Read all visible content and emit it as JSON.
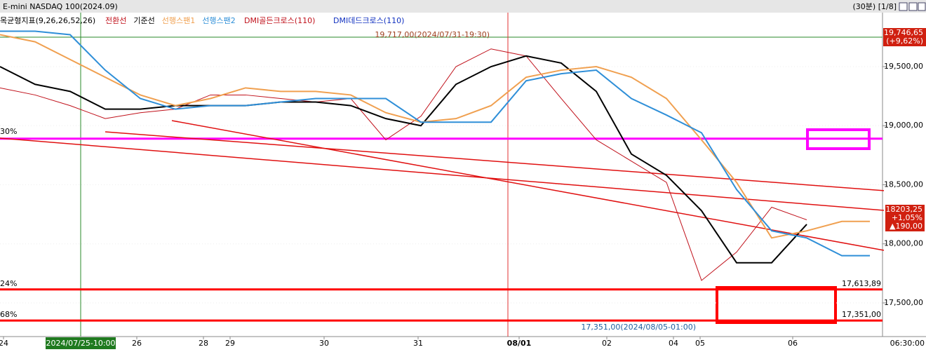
{
  "chart_data": {
    "type": "line",
    "title": "E-mini NASDAQ 100(2024.09)",
    "period": "(30분) [1/8]",
    "indicator": "목균형지표(9,26,26,52,26)",
    "annotations": [
      "DMI골든크로스(110)",
      "DMI데드크로스(110)",
      "19,717,00(2024/07/31-19:30)",
      "17,351,00(2024/08/05-01:00)",
      "30%",
      "24%",
      "68%",
      "06:30:00"
    ],
    "price_box": {
      "high": "19,746,65",
      "high_change": "(+9,62%)",
      "last": "18203,25",
      "change": "+1,05%",
      "diff": "▲190,00"
    },
    "cursor": {
      "value": 2.3,
      "label": "2024/07/25-10:00"
    },
    "x": [
      0,
      1,
      2,
      3,
      4,
      5,
      6,
      7,
      8,
      9,
      10,
      11,
      12,
      13,
      14,
      15,
      16,
      17,
      18,
      19,
      20,
      21,
      22,
      23,
      24,
      24.8
    ],
    "series": [
      {
        "name": "전환선",
        "color": "#c0101a",
        "values": [
          19320,
          19260,
          19170,
          19060,
          19110,
          19140,
          19260,
          19260,
          19230,
          19200,
          19230,
          18880,
          19080,
          19500,
          19650,
          19590,
          19230,
          18880,
          18700,
          18520,
          17690,
          17930,
          18310,
          18203,
          null,
          null
        ]
      },
      {
        "name": "기준선",
        "color": "#000000",
        "values": [
          19500,
          19350,
          19290,
          19140,
          19140,
          19170,
          19170,
          19170,
          19200,
          19200,
          19170,
          19060,
          19000,
          19350,
          19500,
          19590,
          19530,
          19290,
          18760,
          18580,
          18280,
          17840,
          17840,
          18165,
          null,
          null
        ]
      },
      {
        "name": "선행스팬1",
        "color": "#f0a050",
        "values": [
          19770,
          19710,
          19560,
          19410,
          19260,
          19170,
          19230,
          19320,
          19290,
          19290,
          19260,
          19110,
          19030,
          19060,
          19170,
          19410,
          19470,
          19500,
          19410,
          19230,
          18880,
          18520,
          18050,
          18110,
          18190,
          18190
        ]
      },
      {
        "name": "선행스팬2",
        "color": "#2f8fd8",
        "values": [
          19800,
          19800,
          19770,
          19470,
          19230,
          19140,
          19170,
          19170,
          19200,
          19230,
          19230,
          19230,
          19030,
          19030,
          19030,
          19380,
          19440,
          19470,
          19230,
          19090,
          18940,
          18460,
          18110,
          18050,
          17900,
          17900
        ]
      }
    ],
    "hlines": [
      {
        "value": 18890,
        "color": "#ff00ff"
      },
      {
        "value": 17613.89,
        "label": "17,613,89",
        "color": "#ff0000"
      },
      {
        "value": 17351,
        "label": "17,351,00",
        "color": "#ff0000"
      }
    ],
    "trendlines": [
      [
        0,
        18895,
        25.2,
        18283
      ],
      [
        3,
        18948,
        25.2,
        18450
      ],
      [
        4.9,
        19043,
        25.2,
        17945
      ]
    ],
    "xlim": [
      0,
      25.16
    ],
    "ylim": [
      17215,
      19957
    ],
    "xticks": [
      {
        "value": 0.1,
        "label": "24"
      },
      {
        "value": 3.9,
        "label": "26"
      },
      {
        "value": 5.8,
        "label": "28"
      },
      {
        "value": 6.56,
        "label": "29"
      },
      {
        "value": 9.24,
        "label": "30"
      },
      {
        "value": 11.92,
        "label": "31"
      },
      {
        "value": 14.8,
        "label": "08/01"
      },
      {
        "value": 17.3,
        "label": "02"
      },
      {
        "value": 19.2,
        "label": "04"
      },
      {
        "value": 19.96,
        "label": "05"
      },
      {
        "value": 22.6,
        "label": "06"
      }
    ],
    "redline": 14.48,
    "yticks": [
      {
        "value": 17500,
        "label": "17,500,00"
      },
      {
        "value": 18000,
        "label": "18,000,00"
      },
      {
        "value": 18500,
        "label": "18,500,00"
      },
      {
        "value": 19000,
        "label": "19,000,00"
      },
      {
        "value": 19500,
        "label": "19,500,00"
      }
    ]
  }
}
